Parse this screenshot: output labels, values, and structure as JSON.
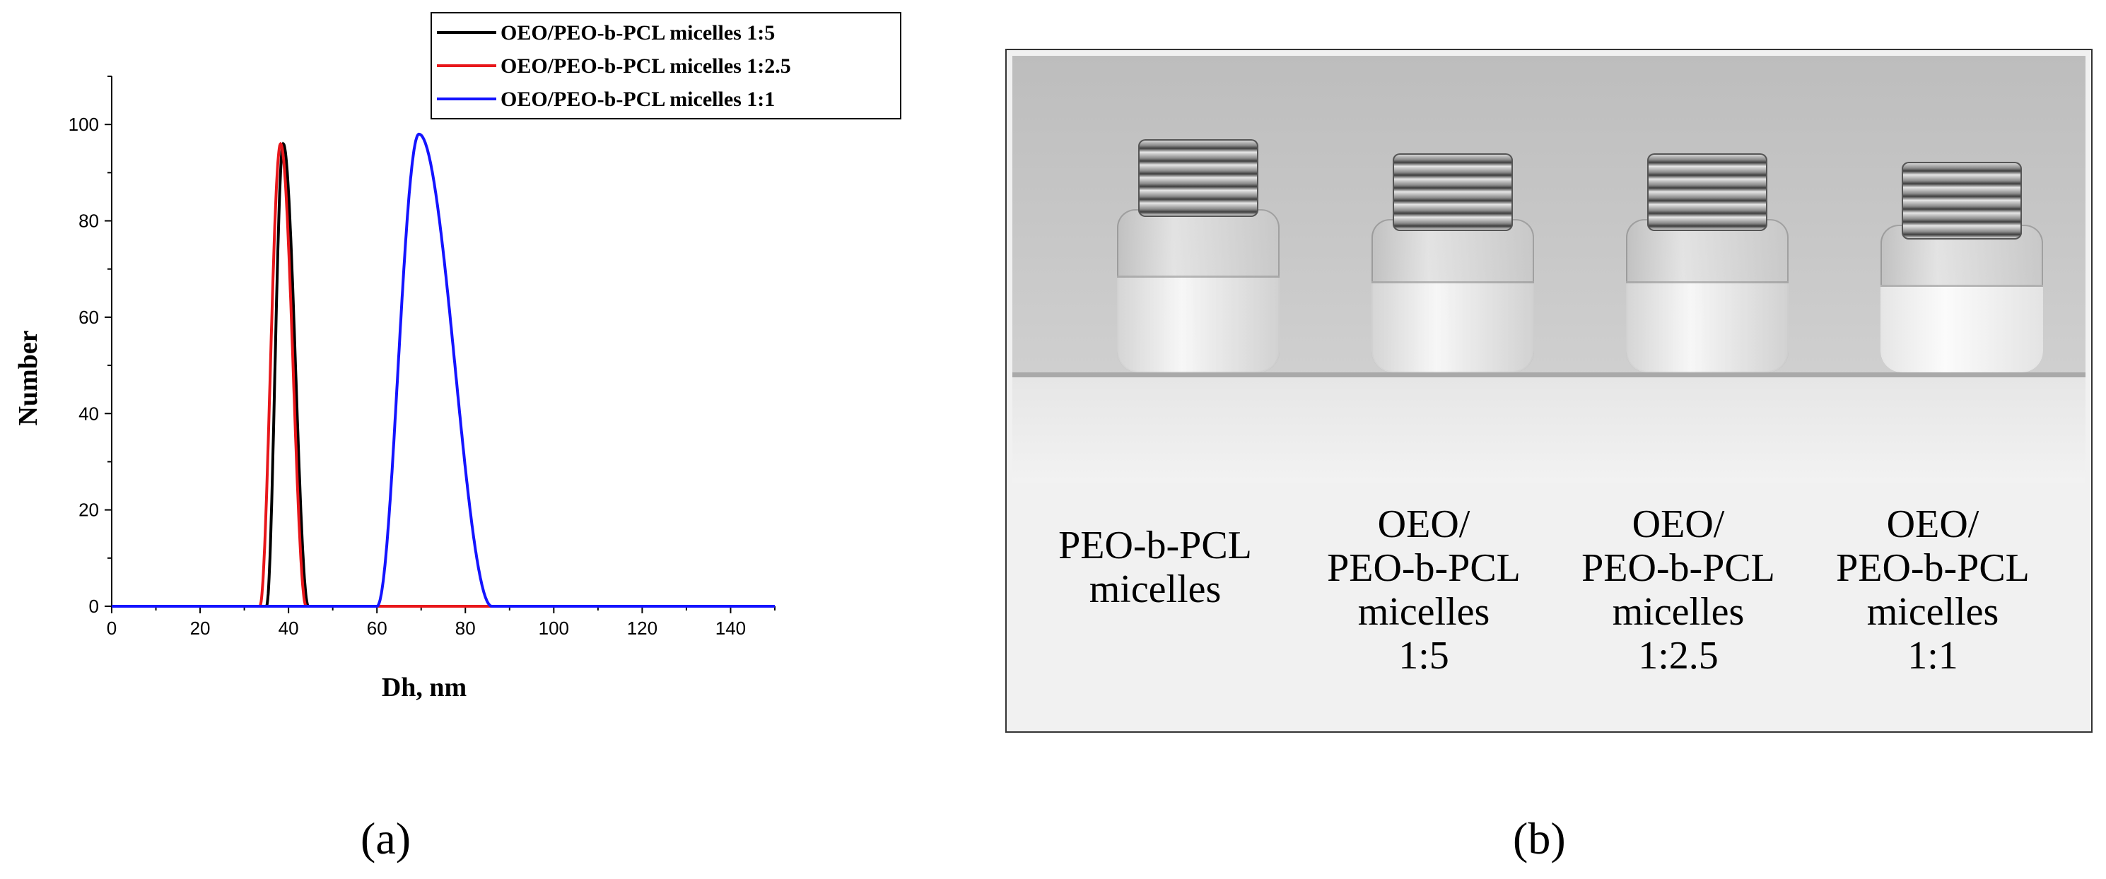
{
  "chart_data": {
    "type": "line",
    "xlabel": "Dh, nm",
    "ylabel": "Number",
    "xlim": [
      0,
      150
    ],
    "ylim": [
      0,
      110
    ],
    "xticks": [
      0,
      20,
      40,
      60,
      80,
      100,
      120,
      140
    ],
    "yticks": [
      0,
      20,
      40,
      60,
      80,
      100
    ],
    "grid": false,
    "legend_position": "top-right",
    "series": [
      {
        "name": "OEO/PEO-b-PCL micelles 1:5",
        "color": "#000000",
        "peak_x": 38.8,
        "peak_y": 96,
        "x_range": [
          35,
          44.5
        ]
      },
      {
        "name": "OEO/PEO-b-PCL micelles 1:2.5",
        "color": "#e8171b",
        "peak_x": 38.2,
        "peak_y": 96,
        "x_range": [
          33.5,
          44
        ]
      },
      {
        "name": "OEO/PEO-b-PCL micelles 1:1",
        "color": "#1414ff",
        "peak_x": 69.5,
        "peak_y": 98,
        "x_range": [
          60,
          86
        ]
      }
    ]
  },
  "panels": {
    "a_label": "(a)",
    "b_label": "(b)"
  },
  "photo": {
    "captions": [
      {
        "lines": [
          "PEO-b-PCL",
          "micelles"
        ]
      },
      {
        "lines": [
          "OEO/",
          "PEO-b-PCL",
          "micelles",
          "1:5"
        ]
      },
      {
        "lines": [
          "OEO/",
          "PEO-b-PCL",
          "micelles",
          "1:2.5"
        ]
      },
      {
        "lines": [
          "OEO/",
          "PEO-b-PCL",
          "micelles",
          "1:1"
        ]
      }
    ]
  }
}
